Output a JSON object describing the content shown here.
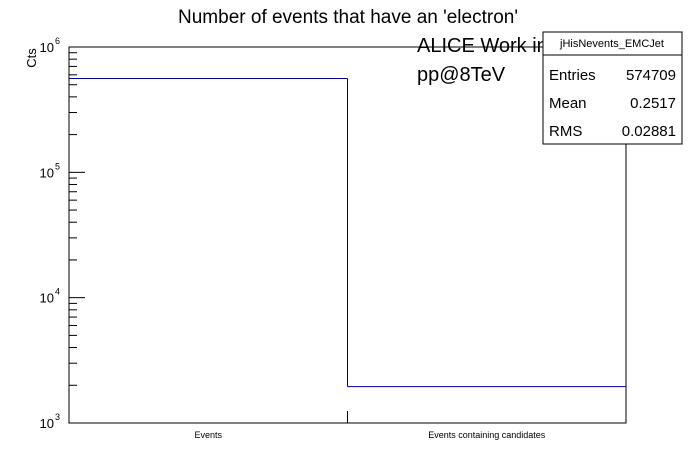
{
  "chart_data": {
    "type": "bar",
    "title": "Number of events that have an 'electron'",
    "ylabel": "Cts",
    "xlabel": "",
    "yscale": "log",
    "ylim": [
      1000,
      1000000
    ],
    "categories": [
      "Events",
      "Events containing candidates"
    ],
    "values": [
      560000,
      1950
    ],
    "yticks": [
      {
        "base": "10",
        "exp": "3"
      },
      {
        "base": "10",
        "exp": "4"
      },
      {
        "base": "10",
        "exp": "5"
      },
      {
        "base": "10",
        "exp": "6"
      }
    ],
    "line_color": "#000099",
    "grid": false,
    "legend": "none"
  },
  "overlay": {
    "line1": "ALICE Work in Progress",
    "line2": "pp@8TeV"
  },
  "stats_box": {
    "name": "jHisNevents_EMCJet",
    "rows": [
      {
        "label": "Entries",
        "value": "574709"
      },
      {
        "label": "Mean",
        "value": "0.2517"
      },
      {
        "label": "RMS",
        "value": "0.02881"
      }
    ]
  }
}
